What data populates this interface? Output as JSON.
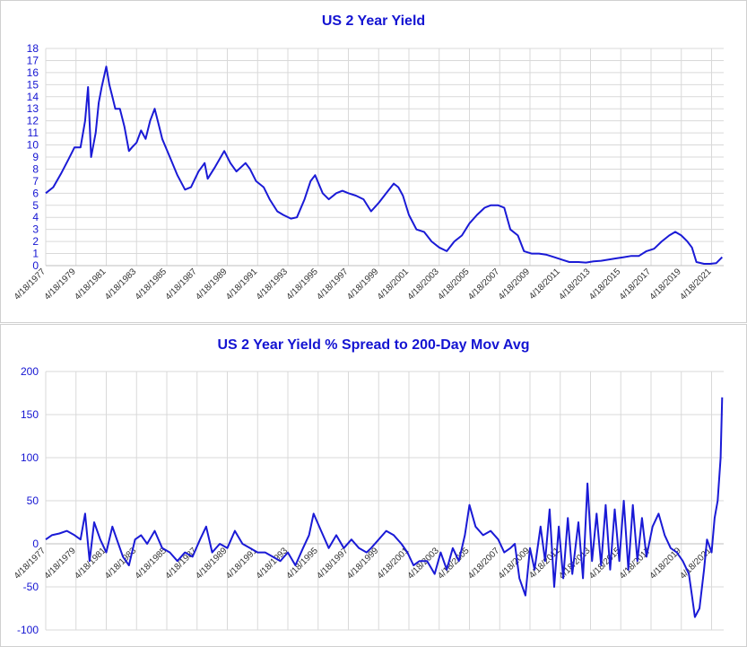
{
  "chart_data": [
    {
      "type": "line",
      "title": "US 2 Year Yield",
      "xlabel": "",
      "ylabel": "",
      "ylim": [
        0,
        18
      ],
      "yticks": [
        0,
        1,
        2,
        3,
        4,
        5,
        6,
        7,
        8,
        9,
        10,
        11,
        12,
        13,
        14,
        15,
        16,
        17,
        18
      ],
      "xtick_labels": [
        "4/18/1977",
        "4/18/1979",
        "4/18/1981",
        "4/18/1983",
        "4/18/1985",
        "4/18/1987",
        "4/18/1989",
        "4/18/1991",
        "4/18/1993",
        "4/18/1995",
        "4/18/1997",
        "4/18/1999",
        "4/18/2001",
        "4/18/2003",
        "4/18/2005",
        "4/18/2007",
        "4/18/2009",
        "4/18/2011",
        "4/18/2013",
        "4/18/2015",
        "4/18/2017",
        "4/18/2019",
        "4/18/2021"
      ],
      "grid": true,
      "line_color": "#1a1ad6",
      "series": [
        {
          "x": [
            1977.3,
            1977.8,
            1978.3,
            1978.8,
            1979.2,
            1979.6,
            1979.9,
            1980.1,
            1980.3,
            1980.6,
            1980.8,
            1981.0,
            1981.3,
            1981.5,
            1981.7,
            1981.9,
            1982.2,
            1982.5,
            1982.8,
            1983.0,
            1983.3,
            1983.6,
            1983.9,
            1984.2,
            1984.5,
            1984.8,
            1985.0,
            1985.5,
            1986.0,
            1986.5,
            1986.9,
            1987.4,
            1987.8,
            1988.0,
            1988.5,
            1989.1,
            1989.5,
            1989.9,
            1990.5,
            1990.8,
            1991.2,
            1991.7,
            1992.1,
            1992.6,
            1993.0,
            1993.5,
            1993.9,
            1994.4,
            1994.8,
            1995.1,
            1995.6,
            1996.0,
            1996.5,
            1996.9,
            1997.3,
            1997.8,
            1998.3,
            1998.8,
            1999.3,
            1999.8,
            2000.3,
            2000.6,
            2000.9,
            2001.3,
            2001.8,
            2002.3,
            2002.8,
            2003.3,
            2003.8,
            2004.3,
            2004.8,
            2005.3,
            2005.8,
            2006.3,
            2006.7,
            2007.2,
            2007.6,
            2008.0,
            2008.5,
            2008.9,
            2009.4,
            2009.9,
            2010.4,
            2010.9,
            2011.4,
            2011.9,
            2012.5,
            2013.0,
            2013.5,
            2014.0,
            2014.5,
            2015.0,
            2015.5,
            2016.0,
            2016.5,
            2017.0,
            2017.5,
            2018.0,
            2018.5,
            2018.9,
            2019.3,
            2019.7,
            2020.0,
            2020.3,
            2020.8,
            2021.2,
            2021.6,
            2022.0
          ],
          "y": [
            6.0,
            6.5,
            7.6,
            8.8,
            9.8,
            9.8,
            12.0,
            14.8,
            9.0,
            11.0,
            13.5,
            14.8,
            16.5,
            15.0,
            14.0,
            13.0,
            13.0,
            11.5,
            9.5,
            9.8,
            10.2,
            11.2,
            10.5,
            12.0,
            13.0,
            11.5,
            10.5,
            9.0,
            7.5,
            6.3,
            6.5,
            7.8,
            8.5,
            7.2,
            8.2,
            9.5,
            8.5,
            7.8,
            8.5,
            8.0,
            7.0,
            6.5,
            5.5,
            4.5,
            4.2,
            3.9,
            4.0,
            5.5,
            7.0,
            7.5,
            6.0,
            5.5,
            6.0,
            6.2,
            6.0,
            5.8,
            5.5,
            4.5,
            5.2,
            6.0,
            6.8,
            6.5,
            5.8,
            4.2,
            3.0,
            2.8,
            2.0,
            1.5,
            1.2,
            2.0,
            2.5,
            3.5,
            4.2,
            4.8,
            5.0,
            5.0,
            4.8,
            3.0,
            2.5,
            1.2,
            1.0,
            1.0,
            0.9,
            0.7,
            0.5,
            0.3,
            0.3,
            0.25,
            0.35,
            0.4,
            0.5,
            0.6,
            0.7,
            0.8,
            0.8,
            1.2,
            1.4,
            2.0,
            2.5,
            2.8,
            2.5,
            2.0,
            1.5,
            0.3,
            0.15,
            0.15,
            0.2,
            0.7
          ]
        }
      ]
    },
    {
      "type": "line",
      "title": "US 2 Year Yield % Spread to 200-Day Mov Avg",
      "xlabel": "",
      "ylabel": "",
      "ylim": [
        -100,
        200
      ],
      "yticks": [
        -100,
        -50,
        0,
        50,
        100,
        150,
        200
      ],
      "xtick_labels": [
        "4/18/1977",
        "4/18/1979",
        "4/18/1981",
        "4/18/1983",
        "4/18/1985",
        "4/18/1987",
        "4/18/1989",
        "4/18/1991",
        "4/18/1993",
        "4/18/1995",
        "4/18/1997",
        "4/18/1999",
        "4/18/2001",
        "4/18/2003",
        "4/18/2005",
        "4/18/2007",
        "4/18/2009",
        "4/18/2011",
        "4/18/2013",
        "4/18/2015",
        "4/18/2017",
        "4/18/2019",
        "4/18/2021"
      ],
      "grid": true,
      "line_color": "#1a1ad6",
      "series": [
        {
          "x": [
            1977.3,
            1977.7,
            1978.2,
            1978.7,
            1979.2,
            1979.6,
            1979.9,
            1980.2,
            1980.5,
            1980.9,
            1981.3,
            1981.7,
            1982.0,
            1982.4,
            1982.8,
            1983.2,
            1983.6,
            1984.0,
            1984.5,
            1985.0,
            1985.5,
            1986.0,
            1986.5,
            1987.0,
            1987.5,
            1987.9,
            1988.3,
            1988.8,
            1989.3,
            1989.8,
            1990.3,
            1990.8,
            1991.3,
            1991.8,
            1992.3,
            1992.8,
            1993.3,
            1993.8,
            1994.3,
            1994.7,
            1995.0,
            1995.5,
            1996.0,
            1996.5,
            1997.0,
            1997.5,
            1998.0,
            1998.5,
            1998.8,
            1999.3,
            1999.8,
            2000.3,
            2000.8,
            2001.2,
            2001.6,
            2002.0,
            2002.5,
            2003.0,
            2003.4,
            2003.8,
            2004.2,
            2004.6,
            2005.0,
            2005.3,
            2005.7,
            2006.2,
            2006.7,
            2007.2,
            2007.6,
            2008.0,
            2008.3,
            2008.6,
            2009.0,
            2009.3,
            2009.6,
            2010.0,
            2010.3,
            2010.6,
            2010.9,
            2011.2,
            2011.5,
            2011.8,
            2012.1,
            2012.5,
            2012.8,
            2013.1,
            2013.4,
            2013.7,
            2014.0,
            2014.3,
            2014.6,
            2014.9,
            2015.2,
            2015.5,
            2015.8,
            2016.1,
            2016.4,
            2016.7,
            2017.0,
            2017.4,
            2017.8,
            2018.2,
            2018.6,
            2019.0,
            2019.4,
            2019.8,
            2020.0,
            2020.2,
            2020.5,
            2020.8,
            2021.0,
            2021.3,
            2021.5,
            2021.7,
            2021.9,
            2022.0
          ],
          "y": [
            5,
            10,
            12,
            15,
            10,
            5,
            35,
            -20,
            25,
            5,
            -10,
            20,
            5,
            -15,
            -25,
            5,
            10,
            0,
            15,
            -5,
            -10,
            -20,
            -10,
            -15,
            5,
            20,
            -10,
            0,
            -5,
            15,
            0,
            -5,
            -10,
            -10,
            -15,
            -20,
            -10,
            -25,
            -5,
            10,
            35,
            15,
            -5,
            10,
            -5,
            5,
            -5,
            -10,
            -5,
            5,
            15,
            10,
            0,
            -10,
            -25,
            -20,
            -20,
            -35,
            -10,
            -30,
            -5,
            -20,
            10,
            45,
            20,
            10,
            15,
            5,
            -10,
            -5,
            0,
            -40,
            -60,
            -5,
            -30,
            20,
            -20,
            40,
            -50,
            20,
            -40,
            30,
            -35,
            25,
            -40,
            70,
            -20,
            35,
            -25,
            45,
            -30,
            40,
            -20,
            50,
            -30,
            45,
            -20,
            30,
            -15,
            20,
            35,
            10,
            -5,
            -10,
            -20,
            -35,
            -60,
            -85,
            -75,
            -30,
            5,
            -10,
            30,
            50,
            100,
            170
          ]
        }
      ]
    }
  ]
}
